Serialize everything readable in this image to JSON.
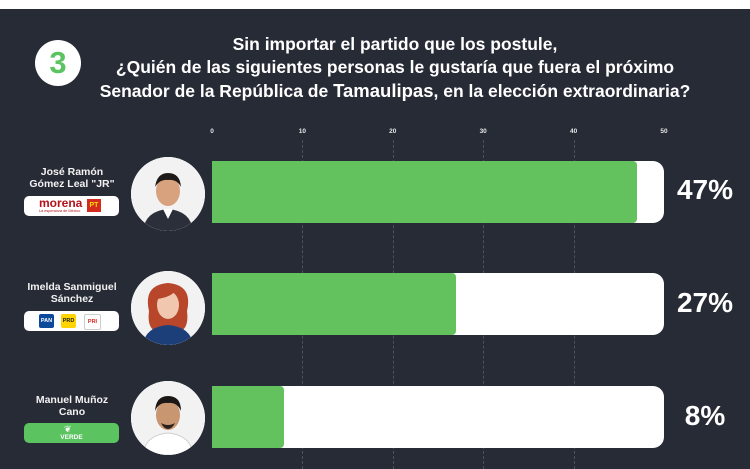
{
  "header": {
    "number": "3",
    "question_line1": "Sin importar el partido que los postule,",
    "question_line2": "¿Quién de las siguientes personas le gustaría que fuera el próximo",
    "question_line3_pre": "Senador de la República de ",
    "question_line3_highlight": "Tamaulipas",
    "question_line3_post": ", en la elección extraordinaria?"
  },
  "candidates": [
    {
      "name_line1": "José Ramón",
      "name_line2": "Gómez Leal \"JR\"",
      "party": "morena",
      "party_label": "morena",
      "party_tagline": "La esperanza de México",
      "party_label2": "PT",
      "percent_label": "47%"
    },
    {
      "name_line1": "Imelda Sanmiguel",
      "name_line2": "Sánchez",
      "party": "PAN-PRD-PRI",
      "logos": [
        "PAN",
        "PRD",
        "PRI"
      ],
      "percent_label": "27%"
    },
    {
      "name_line1": "Manuel Muñoz",
      "name_line2": "Cano",
      "party": "VERDE",
      "party_label": "VERDE",
      "percent_label": "8%"
    }
  ],
  "chart_data": {
    "type": "bar",
    "orientation": "horizontal",
    "categories": [
      "José Ramón Gómez Leal \"JR\"",
      "Imelda Sanmiguel Sánchez",
      "Manuel Muñoz Cano"
    ],
    "values": [
      47,
      27,
      8
    ],
    "xlim": [
      0,
      50
    ],
    "xticks": [
      0,
      10,
      20,
      30,
      40,
      50
    ],
    "value_labels": [
      "47%",
      "27%",
      "8%"
    ],
    "colors": {
      "bar": "#63c25d",
      "track": "#ffffff",
      "background": "#272b36"
    },
    "grid": true
  }
}
